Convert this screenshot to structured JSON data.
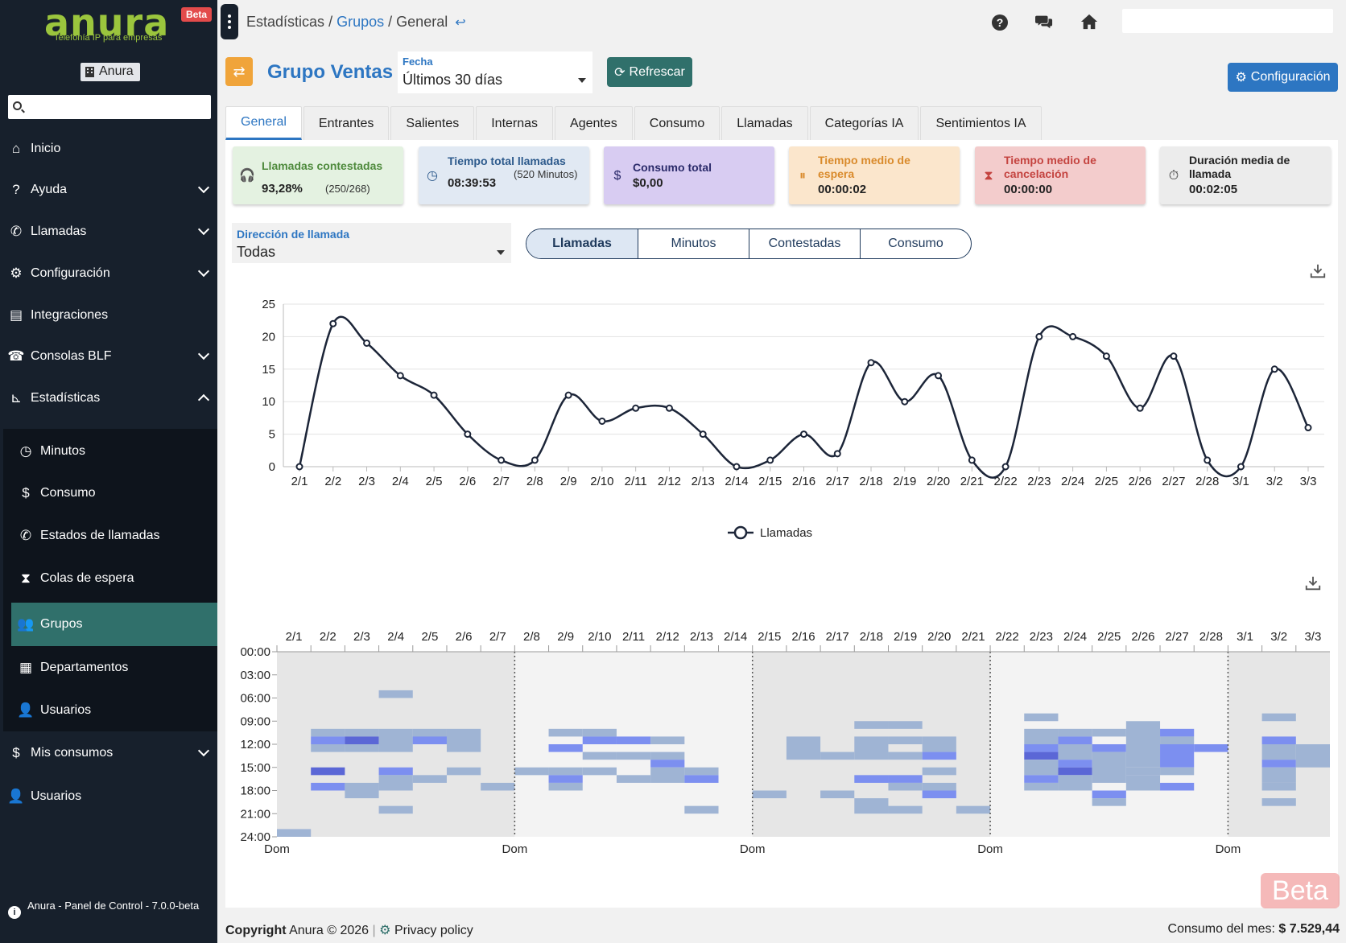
{
  "brand": {
    "logo": "anura",
    "tagline": "Telefonía IP para empresas",
    "beta": "Beta",
    "company": "Anura"
  },
  "sidebar": {
    "items": [
      {
        "label": "Inicio",
        "icon": "home-icon"
      },
      {
        "label": "Ayuda",
        "icon": "question-icon"
      },
      {
        "label": "Llamadas",
        "icon": "phone-icon"
      },
      {
        "label": "Configuración",
        "icon": "gear-icon"
      },
      {
        "label": "Integraciones",
        "icon": "store-icon"
      },
      {
        "label": "Consolas BLF",
        "icon": "fax-icon"
      },
      {
        "label": "Estadísticas",
        "icon": "chart-icon"
      },
      {
        "label": "Minutos",
        "icon": "clock-icon"
      },
      {
        "label": "Consumo",
        "icon": "dollar-icon"
      },
      {
        "label": "Estados de llamadas",
        "icon": "phone-icon"
      },
      {
        "label": "Colas de espera",
        "icon": "hourglass-icon"
      },
      {
        "label": "Grupos",
        "icon": "users-icon"
      },
      {
        "label": "Departamentos",
        "icon": "building-icon"
      },
      {
        "label": "Usuarios",
        "icon": "user-icon"
      },
      {
        "label": "Mis consumos",
        "icon": "dollar-icon"
      },
      {
        "label": "Usuarios",
        "icon": "user-icon"
      }
    ],
    "footer": "Anura - Panel de Control - 7.0.0-beta"
  },
  "breadcrumb": {
    "root": "Estadísticas",
    "sep": "/",
    "middle": "Grupos",
    "current": "General",
    "back": "↩"
  },
  "header": {
    "title": "Grupo Ventas",
    "date_label": "Fecha",
    "date_value": "Últimos 30 días",
    "refresh": "Refrescar",
    "config": "Configuración"
  },
  "tabs": [
    "General",
    "Entrantes",
    "Salientes",
    "Internas",
    "Agentes",
    "Consumo",
    "Llamadas",
    "Categorías IA",
    "Sentimientos IA"
  ],
  "stats": [
    {
      "label": "Llamadas contestadas",
      "value": "93,28%",
      "sub": "(250/268)",
      "color": "#4e8a3c",
      "bg": "#e4f2e1"
    },
    {
      "label": "Tiempo total llamadas",
      "value": "08:39:53",
      "sub": "(520 Minutos)",
      "color": "#2d5a8c",
      "bg": "#e1e9f3"
    },
    {
      "label": "Consumo total",
      "value": "$0,00",
      "color": "#2a2a6a",
      "bg": "#d8ccf2"
    },
    {
      "label": "Tiempo medio de espera",
      "value": "00:00:02",
      "color": "#d98a2b",
      "bg": "#fbe6cc"
    },
    {
      "label": "Tiempo medio de cancelación",
      "value": "00:00:00",
      "color": "#c4433f",
      "bg": "#f3cccc"
    },
    {
      "label": "Duración media de llamada",
      "value": "00:02:05",
      "color": "#222222",
      "bg": "#ececec"
    }
  ],
  "direction": {
    "label": "Dirección de llamada",
    "value": "Todas"
  },
  "metric_toggle": [
    "Llamadas",
    "Minutos",
    "Contestadas",
    "Consumo"
  ],
  "chart_data": {
    "type": "line",
    "ylabel": "Llamadas",
    "ylim": [
      0,
      25
    ],
    "yticks": [
      0,
      5,
      10,
      15,
      20,
      25
    ],
    "x": [
      "2/1",
      "2/2",
      "2/3",
      "2/4",
      "2/5",
      "2/6",
      "2/7",
      "2/8",
      "2/9",
      "2/10",
      "2/11",
      "2/12",
      "2/13",
      "2/14",
      "2/15",
      "2/16",
      "2/17",
      "2/18",
      "2/19",
      "2/20",
      "2/21",
      "2/22",
      "2/23",
      "2/24",
      "2/25",
      "2/26",
      "2/27",
      "2/28",
      "3/1",
      "3/2",
      "3/3"
    ],
    "series": [
      {
        "name": "Llamadas",
        "values": [
          0,
          22,
          19,
          14,
          11,
          5,
          1,
          1,
          11,
          7,
          9,
          9,
          5,
          0,
          1,
          5,
          2,
          16,
          10,
          14,
          1,
          0,
          20,
          20,
          17,
          9,
          17,
          1,
          0,
          15,
          6
        ]
      }
    ],
    "grid": true,
    "legend": "bottom-center",
    "line_color": "#1c2538"
  },
  "heatmap": {
    "days": [
      "2/1",
      "2/2",
      "2/3",
      "2/4",
      "2/5",
      "2/6",
      "2/7",
      "2/8",
      "2/9",
      "2/10",
      "2/11",
      "2/12",
      "2/13",
      "2/14",
      "2/15",
      "2/16",
      "2/17",
      "2/18",
      "2/19",
      "2/20",
      "2/21",
      "2/22",
      "2/23",
      "2/24",
      "2/25",
      "2/26",
      "2/27",
      "2/28",
      "3/1",
      "3/2",
      "3/3"
    ],
    "hours": [
      "00:00",
      "03:00",
      "06:00",
      "09:00",
      "12:00",
      "15:00",
      "18:00",
      "21:00",
      "24:00"
    ],
    "week_label": "Dom"
  },
  "footer": {
    "copyright_bold": "Copyright",
    "copyright_rest": "Anura © 2026",
    "privacy": "Privacy policy",
    "consumo_label": "Consumo del mes:",
    "consumo_value": "$ 7.529,44",
    "watermark": "Beta"
  }
}
